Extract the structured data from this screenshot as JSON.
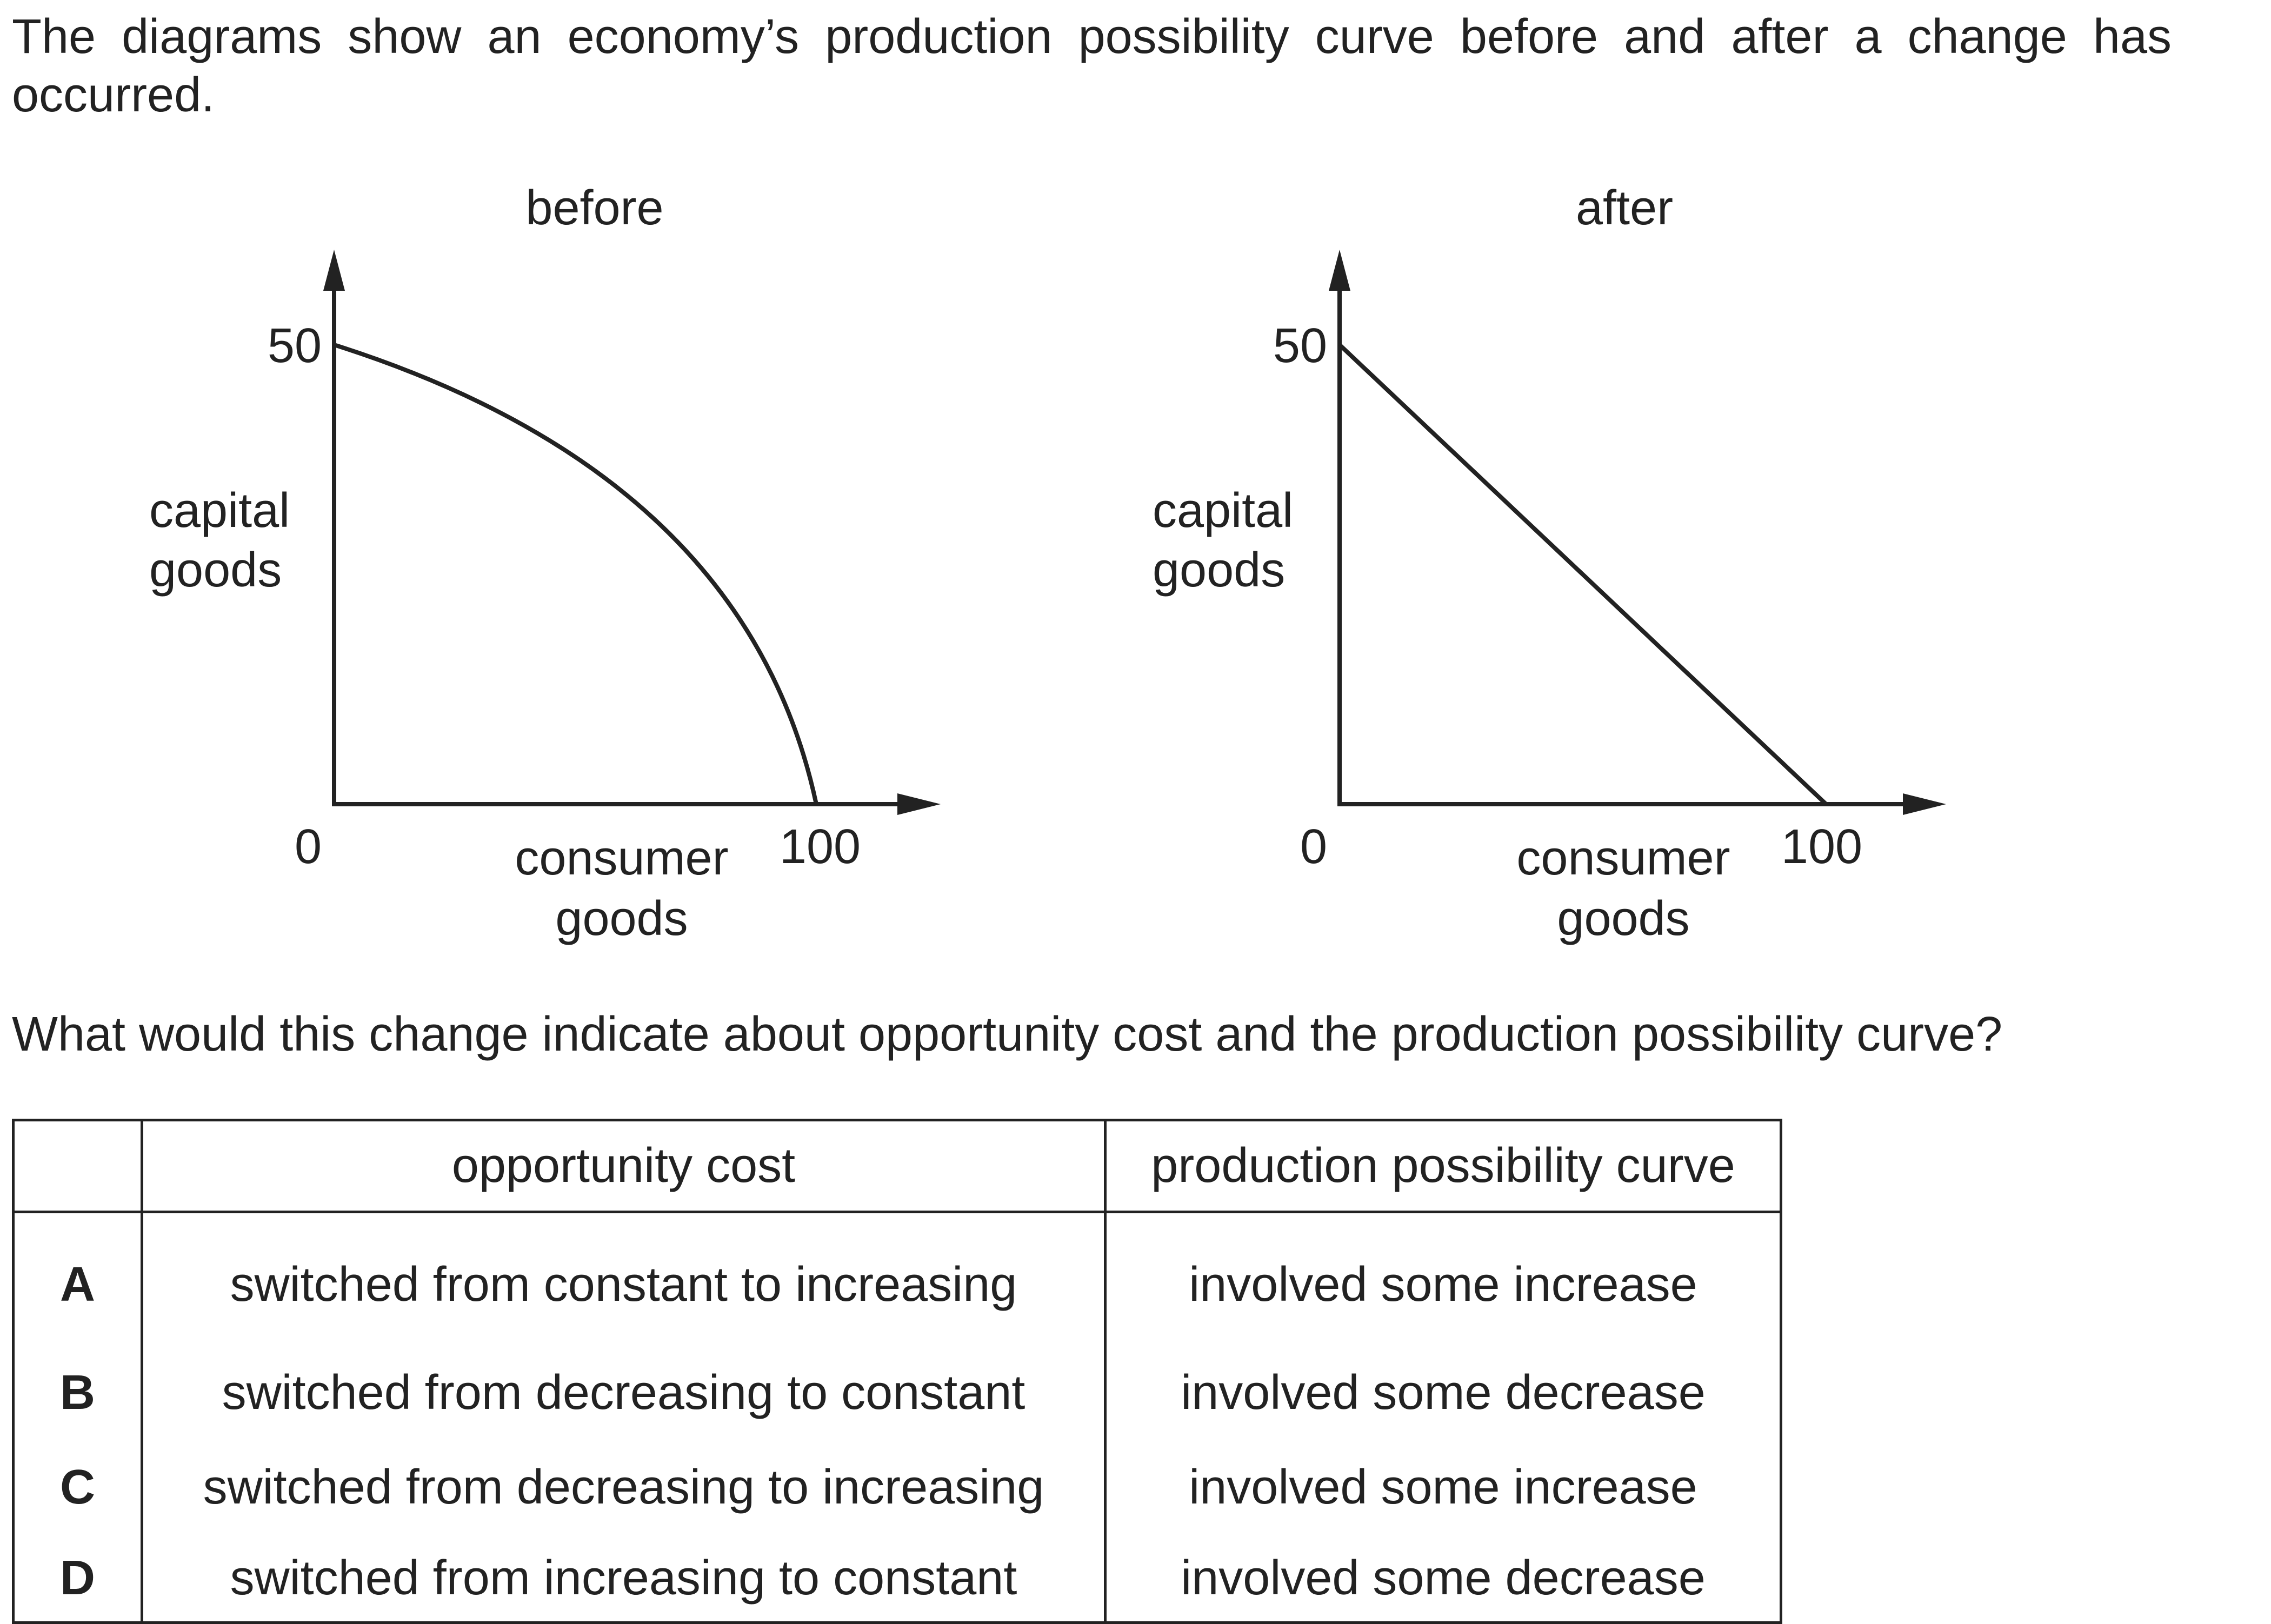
{
  "intro_text": "The diagrams show an economy’s production possibility curve before and after a change has occurred.",
  "figures": [
    {
      "title": "before",
      "y_label_line1": "capital",
      "y_label_line2": "goods",
      "x_label_line1": "consumer",
      "x_label_line2": "goods",
      "origin_label": "0",
      "y_intercept_label": "50",
      "x_intercept_label": "100",
      "curve_shape": "concave"
    },
    {
      "title": "after",
      "y_label_line1": "capital",
      "y_label_line2": "goods",
      "x_label_line1": "consumer",
      "x_label_line2": "goods",
      "origin_label": "0",
      "y_intercept_label": "50",
      "x_intercept_label": "100",
      "curve_shape": "straight"
    }
  ],
  "chart_data": [
    {
      "type": "line",
      "title": "before",
      "xlabel": "consumer goods",
      "ylabel": "capital goods",
      "x": [
        0,
        100
      ],
      "y": [
        50,
        0
      ],
      "shape": "concave to origin",
      "xlim": [
        0,
        100
      ],
      "ylim": [
        0,
        50
      ]
    },
    {
      "type": "line",
      "title": "after",
      "xlabel": "consumer goods",
      "ylabel": "capital goods",
      "x": [
        0,
        100
      ],
      "y": [
        50,
        0
      ],
      "shape": "straight line",
      "xlim": [
        0,
        100
      ],
      "ylim": [
        0,
        50
      ]
    }
  ],
  "question_text": "What would this change indicate about opportunity cost and the production possibility curve?",
  "table": {
    "headers": [
      "",
      "opportunity cost",
      "production possibility curve"
    ],
    "rows": [
      {
        "letter": "A",
        "opportunity_cost": "switched from constant to increasing",
        "ppc": "involved some increase"
      },
      {
        "letter": "B",
        "opportunity_cost": "switched from decreasing to constant",
        "ppc": "involved some decrease"
      },
      {
        "letter": "C",
        "opportunity_cost": "switched from decreasing to increasing",
        "ppc": "involved some increase"
      },
      {
        "letter": "D",
        "opportunity_cost": "switched from increasing to constant",
        "ppc": "involved some decrease"
      }
    ]
  }
}
